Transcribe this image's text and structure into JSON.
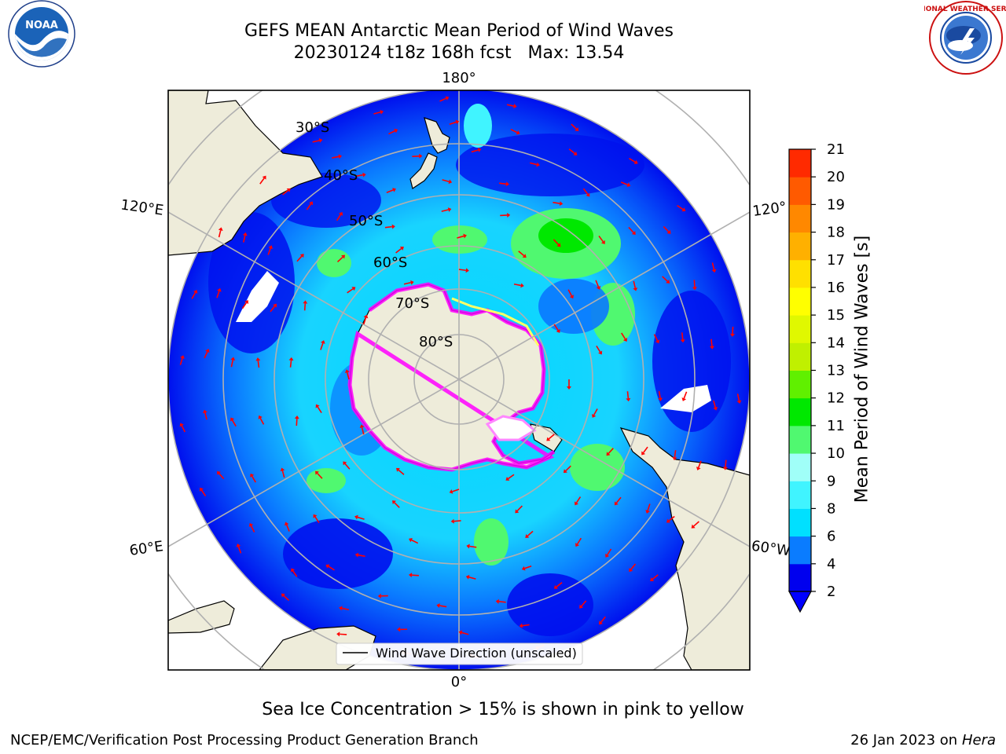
{
  "header": {
    "title_line1": "GEFS MEAN Antarctic Mean Period of Wind Waves",
    "title_line2": "20230124 t18z 168h fcst   Max: 13.54"
  },
  "logos": {
    "left": {
      "name": "NOAA",
      "ring_text": "NATIONAL OCEANIC AND ATMOSPHERIC ADMINISTRATION · U.S. DEPARTMENT OF COMMERCE"
    },
    "right": {
      "ring_text": "NATIONAL WEATHER SERVICE"
    }
  },
  "map": {
    "longitude_labels": [
      "180°",
      "120°E",
      "120°",
      "60°E",
      "60°W",
      "0°"
    ],
    "latitude_labels": [
      "30°S",
      "40°S",
      "50°S",
      "60°S",
      "70°S",
      "80°S"
    ],
    "legend_label": "Wind Wave Direction (unscaled)",
    "arrow_color": "#ff0000",
    "land_color": "#eeecda",
    "sea_ice_colors": [
      "#ff00ff",
      "#ffff66"
    ]
  },
  "colorbar": {
    "label": "Mean Period of Wind Waves [s]",
    "ticks": [
      "2",
      "4",
      "6",
      "8",
      "9",
      "10",
      "11",
      "12",
      "13",
      "14",
      "15",
      "16",
      "17",
      "18",
      "19",
      "20",
      "21"
    ],
    "colors": [
      "#0000ee",
      "#0a7cff",
      "#00e0ff",
      "#40f4ff",
      "#a0fff8",
      "#50f870",
      "#00e800",
      "#60f000",
      "#c0f000",
      "#e0f800",
      "#ffff00",
      "#ffe000",
      "#ffb000",
      "#ff8800",
      "#ff5a00",
      "#ff2a00"
    ],
    "under_color": "#0000ff"
  },
  "caption": "Sea Ice Concentration > 15% is shown in pink to yellow",
  "footer": {
    "left": "NCEP/EMC/Verification Post Processing Product Generation Branch",
    "right_date": "26 Jan 2023 on ",
    "right_system": "Hera"
  }
}
